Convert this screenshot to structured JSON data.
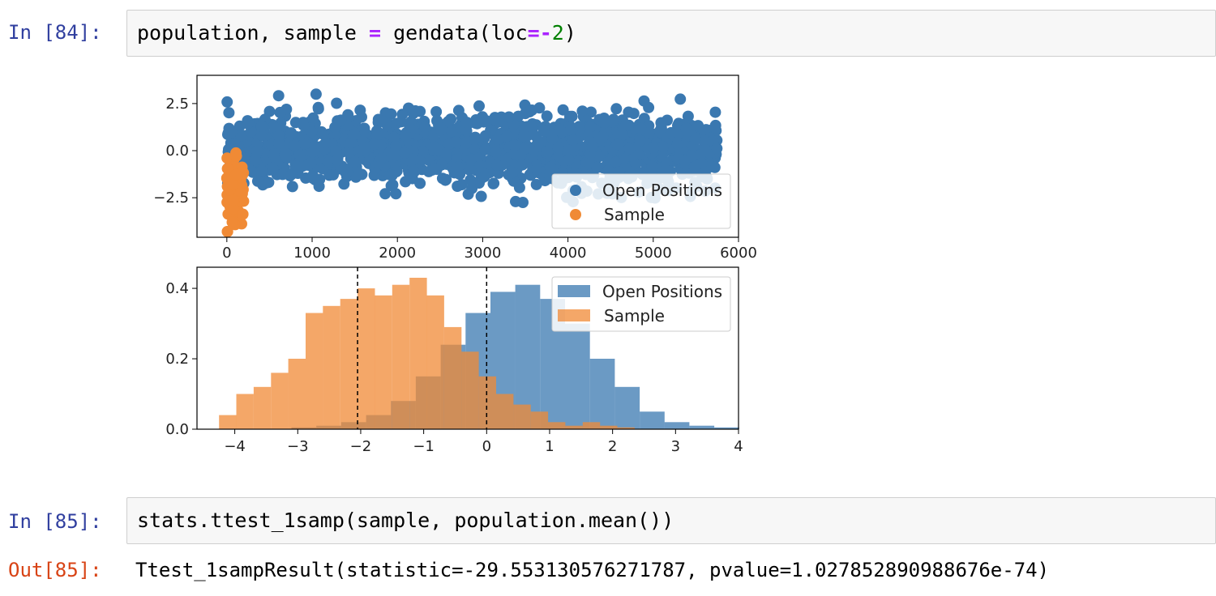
{
  "cells": [
    {
      "prompt": "In [84]:",
      "code": {
        "p1": "population, sample ",
        "op1": "=",
        "p2": " gendata(loc",
        "op2": "=-",
        "num": "2",
        "p3": ")"
      }
    },
    {
      "prompt": "In [85]:",
      "code": {
        "p1": "stats.ttest_1samp(sample, population.mean())"
      }
    }
  ],
  "output": {
    "prompt": "Out[85]:",
    "text": "Ttest_1sampResult(statistic=-29.553130576271787, pvalue=1.027852890988676e-74)"
  },
  "colors": {
    "population": "#3a78b0",
    "sample": "#f08a35",
    "input_prompt": "#303f9f",
    "output_prompt": "#d84315"
  },
  "chart_data": [
    {
      "type": "scatter",
      "xlim": [
        -350,
        6000
      ],
      "ylim": [
        -4.6,
        4.0
      ],
      "xticks": [
        0,
        1000,
        2000,
        3000,
        4000,
        5000,
        6000
      ],
      "xtick_labels": [
        "0",
        "1000",
        "2000",
        "3000",
        "4000",
        "5000",
        "6000"
      ],
      "yticks": [
        2.5,
        0.0,
        -2.5
      ],
      "ytick_labels": [
        "2.5",
        "0.0",
        "−2.5"
      ],
      "legend_position": "lower-right",
      "series": [
        {
          "name": "Open Positions",
          "x_range": [
            0,
            5750
          ],
          "y_mean": 0.0,
          "y_sd": 1.0
        },
        {
          "name": "Sample",
          "x_range": [
            0,
            200
          ],
          "y_mean": -2.0,
          "y_sd": 1.0
        }
      ]
    },
    {
      "type": "bar",
      "xlim": [
        -4.6,
        4.0
      ],
      "ylim": [
        0,
        0.46
      ],
      "xticks": [
        -4,
        -3,
        -2,
        -1,
        0,
        1,
        2,
        3,
        4
      ],
      "xtick_labels": [
        "−4",
        "−3",
        "−2",
        "−1",
        "0",
        "1",
        "2",
        "3",
        "4"
      ],
      "yticks": [
        0.0,
        0.2,
        0.4
      ],
      "ytick_labels": [
        "0.0",
        "0.2",
        "0.4"
      ],
      "legend_position": "upper-right",
      "vlines": [
        -2.05,
        0.0
      ],
      "series": [
        {
          "name": "Open Positions",
          "bin_start": -3.1,
          "bin_width": 0.395,
          "values": [
            0.005,
            0.01,
            0.02,
            0.04,
            0.08,
            0.15,
            0.24,
            0.33,
            0.39,
            0.41,
            0.37,
            0.3,
            0.2,
            0.12,
            0.05,
            0.02,
            0.01,
            0.005
          ]
        },
        {
          "name": "Sample",
          "bin_start": -4.25,
          "bin_width": 0.275,
          "values": [
            0.04,
            0.1,
            0.12,
            0.16,
            0.2,
            0.33,
            0.35,
            0.37,
            0.4,
            0.38,
            0.41,
            0.43,
            0.38,
            0.29,
            0.22,
            0.15,
            0.1,
            0.07,
            0.05,
            0.02,
            0.01,
            0.02,
            0.01,
            0.005
          ]
        }
      ]
    }
  ]
}
